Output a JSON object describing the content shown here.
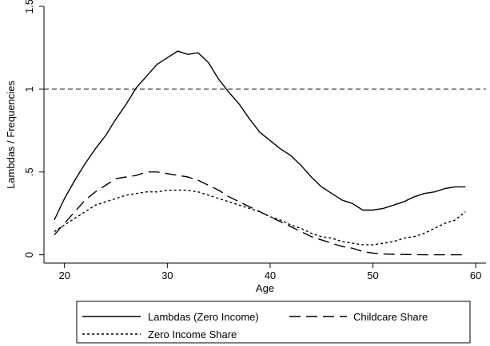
{
  "chart_data": {
    "type": "line",
    "title": "",
    "xlabel": "Age",
    "ylabel": "Lambdas / Frequencies",
    "xlim": [
      18,
      61
    ],
    "ylim": [
      -0.05,
      1.5
    ],
    "xticks": [
      20,
      30,
      40,
      50,
      60
    ],
    "xtick_labels": [
      "20",
      "30",
      "40",
      "50",
      "60"
    ],
    "yticks": [
      0,
      0.5,
      1,
      1.5
    ],
    "ytick_labels": [
      "0",
      ".5",
      "1",
      "1.5"
    ],
    "grid": false,
    "reference_line": {
      "y": 1,
      "style": "dashed"
    },
    "legend_position": "bottom",
    "series": [
      {
        "name": "Lambdas (Zero Income)",
        "style": "solid",
        "x": [
          19,
          20,
          21,
          22,
          23,
          24,
          25,
          26,
          27,
          28,
          29,
          30,
          31,
          32,
          33,
          34,
          35,
          36,
          37,
          38,
          39,
          40,
          41,
          42,
          43,
          44,
          45,
          46,
          47,
          48,
          49,
          50,
          51,
          52,
          53,
          54,
          55,
          56,
          57,
          58,
          59
        ],
        "y": [
          0.21,
          0.34,
          0.45,
          0.55,
          0.64,
          0.72,
          0.82,
          0.91,
          1.01,
          1.08,
          1.15,
          1.19,
          1.23,
          1.21,
          1.22,
          1.16,
          1.06,
          0.98,
          0.91,
          0.82,
          0.74,
          0.69,
          0.64,
          0.6,
          0.54,
          0.47,
          0.41,
          0.37,
          0.33,
          0.31,
          0.27,
          0.27,
          0.28,
          0.3,
          0.32,
          0.35,
          0.37,
          0.38,
          0.4,
          0.41,
          0.41
        ]
      },
      {
        "name": "Childcare Share",
        "style": "long-dash",
        "x": [
          19,
          20,
          21,
          22,
          23,
          24,
          25,
          26,
          27,
          28,
          29,
          30,
          31,
          32,
          33,
          34,
          35,
          36,
          37,
          38,
          39,
          40,
          41,
          42,
          43,
          44,
          45,
          46,
          47,
          48,
          49,
          50,
          51,
          52,
          53,
          54,
          55,
          56,
          57,
          58,
          59
        ],
        "y": [
          0.12,
          0.19,
          0.26,
          0.33,
          0.38,
          0.42,
          0.46,
          0.47,
          0.48,
          0.5,
          0.5,
          0.49,
          0.48,
          0.47,
          0.45,
          0.42,
          0.39,
          0.35,
          0.32,
          0.29,
          0.26,
          0.23,
          0.2,
          0.17,
          0.14,
          0.11,
          0.09,
          0.07,
          0.05,
          0.04,
          0.02,
          0.01,
          0.005,
          0.003,
          0.002,
          0.001,
          0.0,
          0.0,
          0.0,
          0.0,
          0.0
        ]
      },
      {
        "name": "Zero Income Share",
        "style": "short-dash",
        "x": [
          19,
          20,
          21,
          22,
          23,
          24,
          25,
          26,
          27,
          28,
          29,
          30,
          31,
          32,
          33,
          34,
          35,
          36,
          37,
          38,
          39,
          40,
          41,
          42,
          43,
          44,
          45,
          46,
          47,
          48,
          49,
          50,
          51,
          52,
          53,
          54,
          55,
          56,
          57,
          58,
          59
        ],
        "y": [
          0.14,
          0.18,
          0.22,
          0.26,
          0.3,
          0.32,
          0.34,
          0.36,
          0.37,
          0.38,
          0.38,
          0.39,
          0.39,
          0.39,
          0.38,
          0.36,
          0.34,
          0.32,
          0.3,
          0.28,
          0.26,
          0.23,
          0.21,
          0.18,
          0.16,
          0.13,
          0.11,
          0.1,
          0.08,
          0.07,
          0.06,
          0.06,
          0.07,
          0.08,
          0.1,
          0.11,
          0.13,
          0.16,
          0.19,
          0.21,
          0.26
        ]
      }
    ]
  }
}
